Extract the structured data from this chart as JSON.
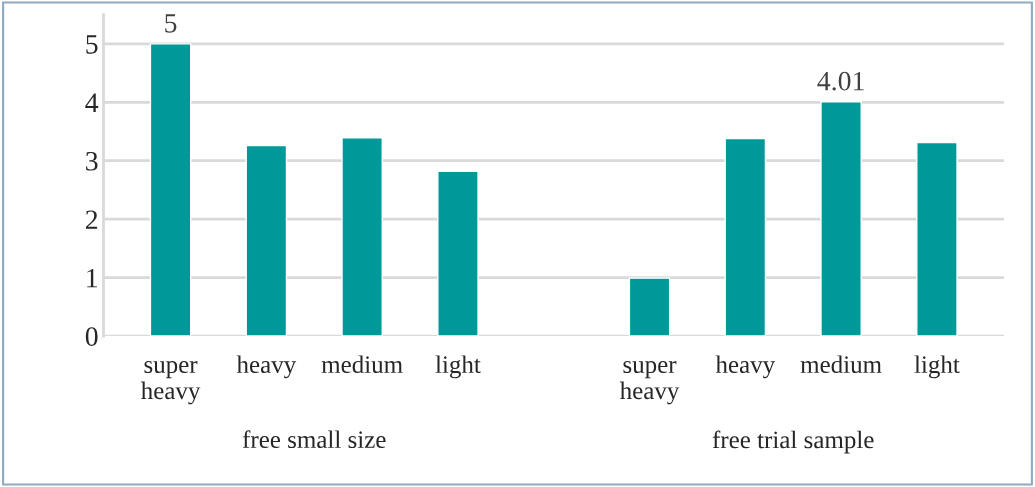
{
  "chart_data": {
    "type": "bar",
    "categories": [
      "super heavy",
      "heavy",
      "medium",
      "light",
      null,
      "super heavy",
      "heavy",
      "medium",
      "light"
    ],
    "values": [
      5,
      3.26,
      3.39,
      2.82,
      null,
      0.99,
      3.38,
      4.01,
      3.31
    ],
    "value_labels": [
      "5",
      null,
      null,
      null,
      null,
      null,
      null,
      "4.01",
      null
    ],
    "color": "#009999",
    "ylim": [
      0,
      5.5
    ],
    "yticks": [
      0,
      1,
      2,
      3,
      4,
      5
    ],
    "grid": "y",
    "annotations": [
      "free small size",
      "free trial sample"
    ]
  }
}
